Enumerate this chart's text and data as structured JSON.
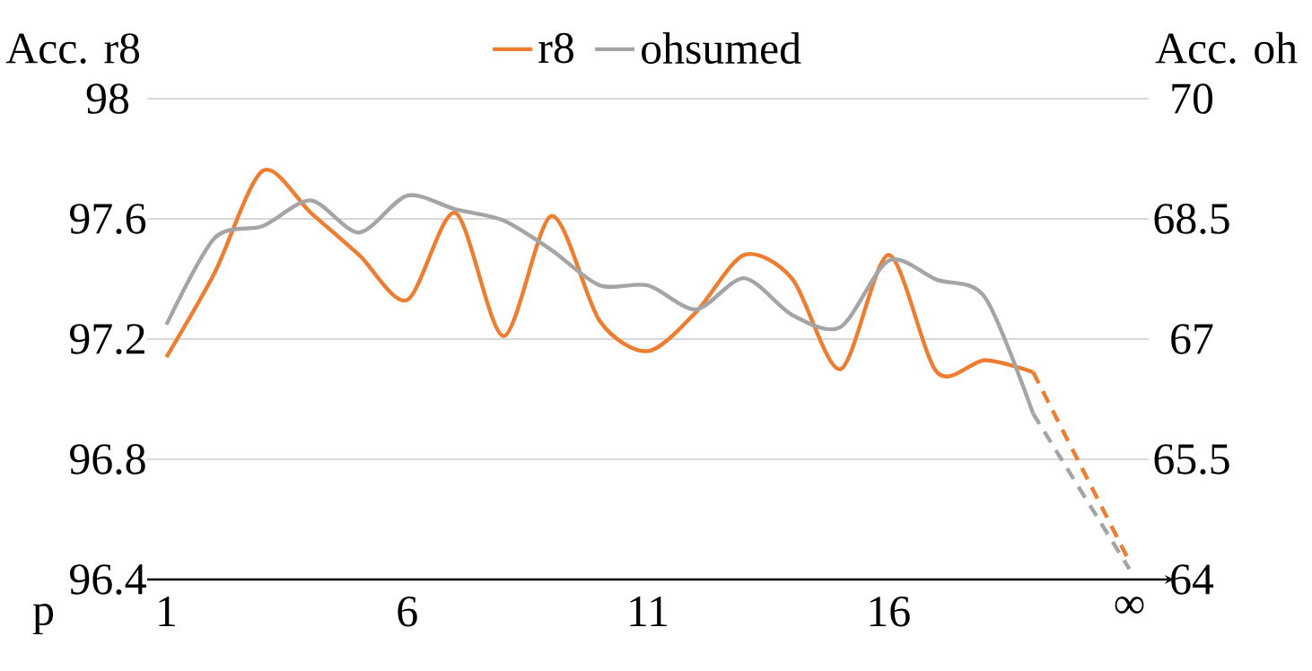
{
  "chart_data": {
    "type": "line",
    "ylabel": "Acc. r8",
    "y2label": "Acc. oh",
    "xlabel": "p",
    "categories": [
      "1",
      null,
      null,
      null,
      null,
      "6",
      null,
      null,
      null,
      null,
      "11",
      null,
      null,
      null,
      null,
      "16",
      null,
      null,
      null,
      null,
      "∞"
    ],
    "ylim": [
      96.4,
      98
    ],
    "yticks": [
      96.4,
      96.8,
      97.2,
      97.6,
      98
    ],
    "y2lim": [
      64,
      70
    ],
    "y2ticks": [
      64,
      65.5,
      67,
      68.5,
      70
    ],
    "grid": "y",
    "legend": "top",
    "marker": "none",
    "line_style": "solid",
    "series": [
      {
        "name": "r8",
        "color": "#ed7d31",
        "values": [
          97.14,
          97.42,
          97.76,
          97.62,
          97.48,
          97.33,
          97.62,
          97.21,
          97.61,
          97.26,
          97.16,
          97.29,
          97.48,
          97.4,
          97.1,
          97.48,
          97.09,
          97.13,
          97.09,
          null,
          null
        ]
      },
      {
        "name": "ohsumed",
        "color": "#a5a5a5",
        "axis": "y2",
        "values": [
          67.18,
          68.26,
          68.41,
          68.73,
          68.33,
          68.79,
          68.62,
          68.48,
          68.11,
          67.67,
          67.67,
          67.37,
          67.76,
          67.3,
          67.15,
          67.98,
          67.74,
          67.52,
          66.07,
          null,
          null
        ]
      },
      {
        "color": "#ed7d31",
        "line_style": "dashed",
        "values": [
          null,
          null,
          null,
          null,
          null,
          null,
          null,
          null,
          null,
          null,
          null,
          null,
          null,
          null,
          null,
          null,
          null,
          null,
          97.09,
          null,
          96.46
        ]
      },
      {
        "color": "#a5a5a5",
        "axis": "y2",
        "line_style": "dashed",
        "values": [
          null,
          null,
          null,
          null,
          null,
          null,
          null,
          null,
          null,
          null,
          null,
          null,
          null,
          null,
          null,
          null,
          null,
          null,
          66.07,
          null,
          64.13
        ]
      }
    ]
  }
}
